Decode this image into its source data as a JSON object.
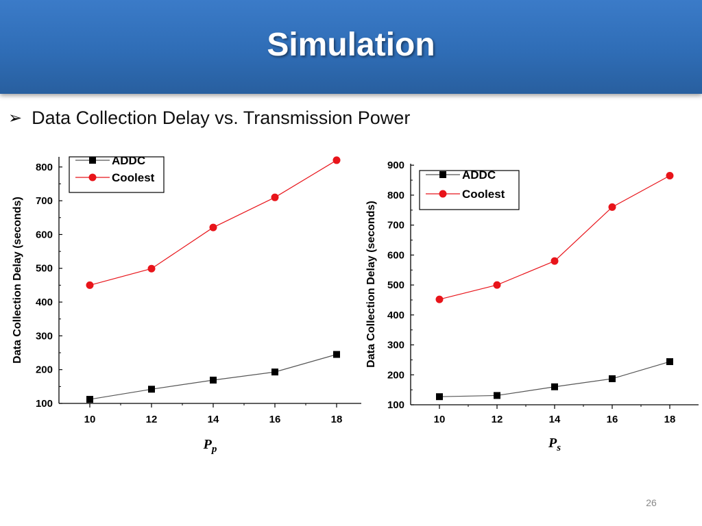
{
  "slide": {
    "title": "Simulation",
    "bullet_icon": "arrow-bullet-icon",
    "bullet_text": "Data Collection Delay vs. Transmission Power",
    "page_number": "26"
  },
  "colors": {
    "addc": "#000000",
    "coolest": "#e8141a",
    "addc_line": "#555555",
    "coolest_line": "#e8141a"
  },
  "chart_data": [
    {
      "type": "line",
      "title": "",
      "xlabel_main": "P",
      "xlabel_sub": "p",
      "ylabel": "Data Collection Delay (seconds)",
      "x": [
        10,
        12,
        14,
        16,
        18
      ],
      "xlim": [
        9,
        18.8
      ],
      "ylim": [
        100,
        830
      ],
      "xticks": [
        10,
        12,
        14,
        16,
        18
      ],
      "yticks": [
        100,
        200,
        300,
        400,
        500,
        600,
        700,
        800
      ],
      "legend_position": "top-left",
      "series": [
        {
          "name": "ADDC",
          "marker": "square",
          "values": [
            112,
            142,
            169,
            193,
            245
          ]
        },
        {
          "name": "Coolest",
          "marker": "circle",
          "values": [
            450,
            499,
            621,
            710,
            820
          ]
        }
      ]
    },
    {
      "type": "line",
      "title": "",
      "xlabel_main": "P",
      "xlabel_sub": "s",
      "ylabel": "Data Collection Delay (seconds)",
      "x": [
        10,
        12,
        14,
        16,
        18
      ],
      "xlim": [
        9,
        19
      ],
      "ylim": [
        100,
        905
      ],
      "xticks": [
        10,
        12,
        14,
        16,
        18
      ],
      "yticks": [
        100,
        200,
        300,
        400,
        500,
        600,
        700,
        800,
        900
      ],
      "legend_position": "top-left",
      "series": [
        {
          "name": "ADDC",
          "marker": "square",
          "values": [
            127,
            131,
            160,
            187,
            244
          ]
        },
        {
          "name": "Coolest",
          "marker": "circle",
          "values": [
            452,
            500,
            580,
            760,
            865
          ]
        }
      ]
    }
  ]
}
